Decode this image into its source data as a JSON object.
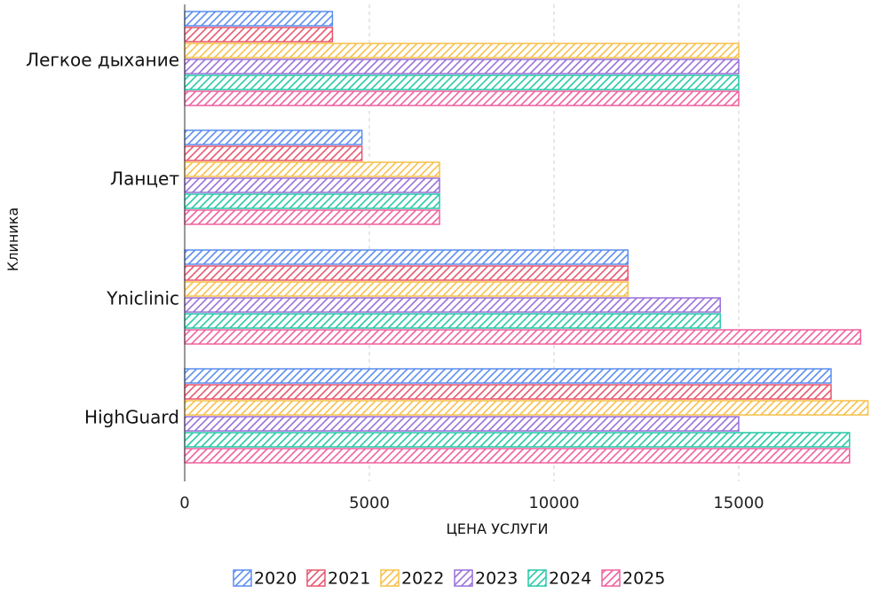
{
  "chart_data": {
    "type": "bar",
    "orientation": "horizontal",
    "categories": [
      "Легкое дыхание",
      "Ланцет",
      "Yniclinic",
      "HighGuard"
    ],
    "series": [
      {
        "name": "2020",
        "color": "#5b8def",
        "values": [
          4000,
          4800,
          12000,
          17500
        ]
      },
      {
        "name": "2021",
        "color": "#e8566d",
        "values": [
          4000,
          4800,
          12000,
          17500
        ]
      },
      {
        "name": "2022",
        "color": "#f7c04a",
        "values": [
          15000,
          6900,
          12000,
          18500
        ]
      },
      {
        "name": "2023",
        "color": "#9a6fd8",
        "values": [
          15000,
          6900,
          14500,
          15000
        ]
      },
      {
        "name": "2024",
        "color": "#26c9a8",
        "values": [
          15000,
          6900,
          14500,
          18000
        ]
      },
      {
        "name": "2025",
        "color": "#f0609e",
        "values": [
          15000,
          6900,
          18300,
          18000
        ]
      }
    ],
    "xlabel": "ЦЕНА УСЛУГИ",
    "ylabel": "Клиника",
    "xlim": [
      0,
      18500
    ],
    "xticks": [
      0,
      5000,
      10000,
      15000
    ],
    "grid": "vertical-dashed",
    "legend": "bottom",
    "pattern": "diagonal-hatch"
  }
}
